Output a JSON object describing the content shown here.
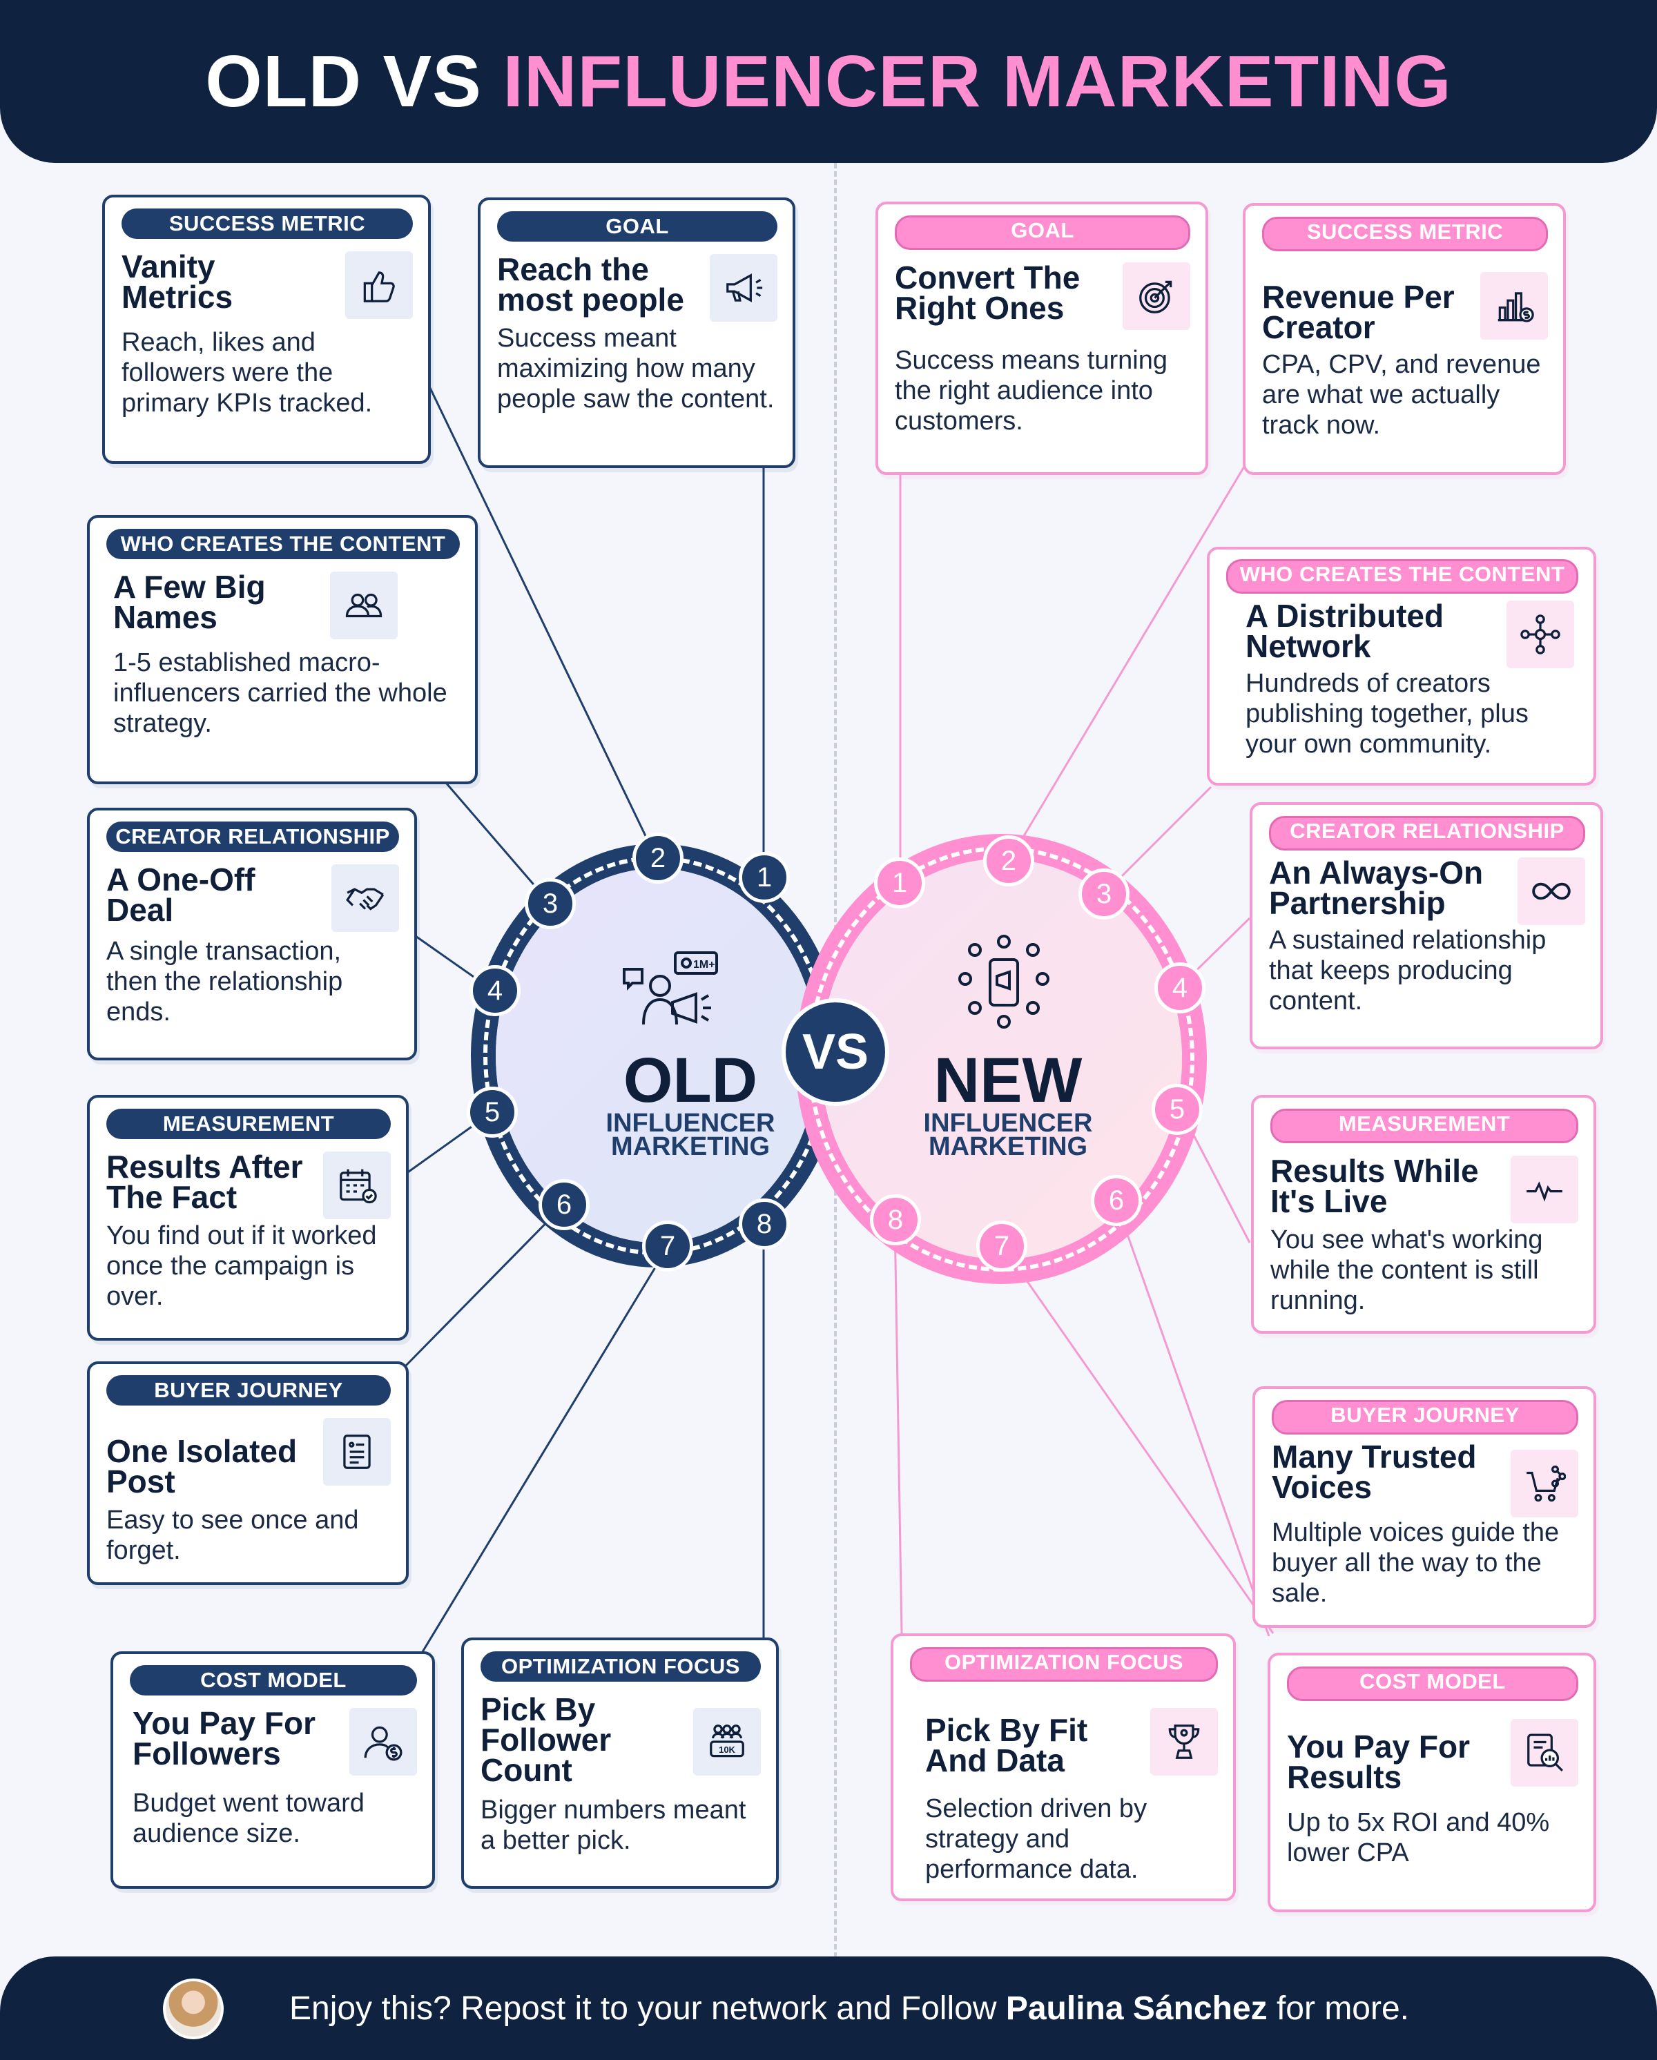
{
  "header": {
    "title_old": "OLD VS",
    "title_new": "INFLUENCER MARKETING"
  },
  "old_cards": [
    {
      "number": "1",
      "badge": "GOAL",
      "title": "Reach the most people",
      "desc": "Success meant maximizing how many people saw the content.",
      "icon": "megaphone-icon"
    },
    {
      "number": "2",
      "badge": "SUCCESS METRIC",
      "title": "Vanity Metrics",
      "desc": "Reach, likes and followers were the primary KPIs tracked.",
      "icon": "thumbs-up-icon"
    },
    {
      "number": "3",
      "badge": "WHO CREATES THE CONTENT",
      "title": "A Few Big Names",
      "desc": "1-5 established macro-influencers carried the whole strategy.",
      "icon": "people-icon"
    },
    {
      "number": "4",
      "badge": "CREATOR RELATIONSHIP",
      "title": "A One-Off Deal",
      "desc": "A single transaction, then the relationship ends.",
      "icon": "handshake-icon"
    },
    {
      "number": "5",
      "badge": "MEASUREMENT",
      "title": "Results After The Fact",
      "desc": "You find out if it worked once the campaign is over.",
      "icon": "calendar-check-icon"
    },
    {
      "number": "6",
      "badge": "BUYER JOURNEY",
      "title": "One Isolated Post",
      "desc": "Easy to see once and forget.",
      "icon": "document-icon"
    },
    {
      "number": "7",
      "badge": "COST MODEL",
      "title": "You Pay For Followers",
      "desc": "Budget went toward audience size.",
      "icon": "user-dollar-icon"
    },
    {
      "number": "8",
      "badge": "OPTIMIZATION FOCUS",
      "title": "Pick By Follower Count",
      "desc": "Bigger numbers meant a better pick.",
      "icon": "followers-10k-icon",
      "icon_text": "10K"
    }
  ],
  "new_cards": [
    {
      "number": "1",
      "badge": "GOAL",
      "title": "Convert The Right Ones",
      "desc": "Success means turning the right audience into customers.",
      "icon": "target-icon"
    },
    {
      "number": "2",
      "badge": "SUCCESS METRIC",
      "title": "Revenue Per Creator",
      "desc": "CPA, CPV, and revenue are what we actually track now.",
      "icon": "bar-chart-dollar-icon"
    },
    {
      "number": "3",
      "badge": "WHO CREATES THE CONTENT",
      "title": "A Distributed Network",
      "desc": "Hundreds of creators publishing together, plus your own community.",
      "icon": "network-icon"
    },
    {
      "number": "4",
      "badge": "CREATOR RELATIONSHIP",
      "title": "An Always-On Partnership",
      "desc": "A sustained relationship that keeps producing content.",
      "icon": "infinity-icon"
    },
    {
      "number": "5",
      "badge": "MEASUREMENT",
      "title": "Results While It's Live",
      "desc": "You see what's working while the content is still running.",
      "icon": "pulse-icon"
    },
    {
      "number": "6",
      "badge": "BUYER JOURNEY",
      "title": "Many Trusted Voices",
      "desc": "Multiple voices guide the buyer all the way to the sale.",
      "icon": "cart-share-icon"
    },
    {
      "number": "7",
      "badge": "COST MODEL",
      "title": "You Pay For Results",
      "desc": "Up to 5x ROI and 40% lower CPA",
      "icon": "report-search-icon"
    },
    {
      "number": "8",
      "badge": "OPTIMIZATION FOCUS",
      "title": "Pick By Fit And Data",
      "desc": "Selection driven by strategy and performance data.",
      "icon": "trophy-icon"
    }
  ],
  "center": {
    "old_big": "OLD",
    "old_small_1": "INFLUENCER",
    "old_small_2": "MARKETING",
    "old_icon_text": "1M+",
    "vs": "VS",
    "new_big": "NEW",
    "new_small_1": "INFLUENCER",
    "new_small_2": "MARKETING"
  },
  "footer": {
    "text_before": "Enjoy this? Repost it to your network and Follow",
    "name": "Paulina Sánchez",
    "text_after": "for more."
  },
  "colors": {
    "navy": "#1f3e6c",
    "dark_navy": "#0f2341",
    "pink": "#ff8fd0",
    "pink_border": "#f49ad2",
    "background": "#f4f6fb"
  }
}
